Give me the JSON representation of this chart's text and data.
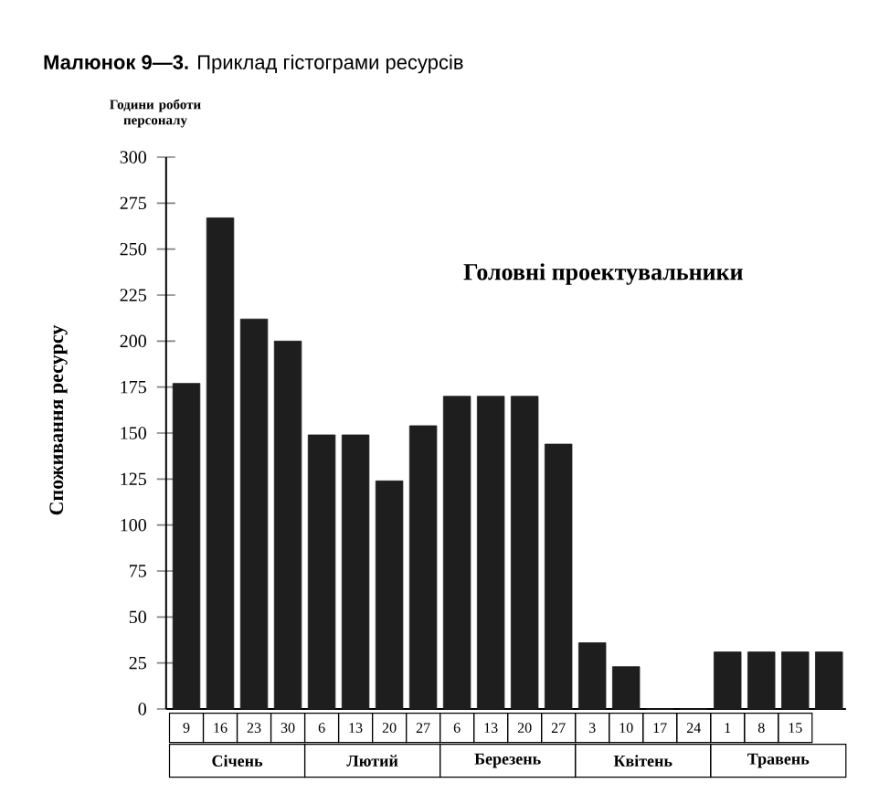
{
  "chart_data": {
    "type": "bar",
    "title": "**Малюнок 9—3.** Приклад гістограми ресурсів",
    "subtitle": "Головні проектувальники",
    "ylabel": "Споживання ресурсу",
    "annotations": [
      "Січень",
      "Лютий",
      "Березень",
      "Квітень",
      "Травень",
      "Години роботи персоналу"
    ],
    "categories": [
      "9",
      "16",
      "23",
      "30",
      "6",
      "13",
      "20",
      "27",
      "6",
      "13",
      "20",
      "27",
      "3",
      "10",
      "17",
      "24",
      "1",
      "8",
      "15",
      null
    ],
    "values": [
      177,
      267,
      212,
      200,
      149,
      149,
      124,
      154,
      170,
      170,
      170,
      144,
      36,
      23,
      0,
      0,
      31,
      31,
      31,
      31
    ],
    "color": "#1e1e1e",
    "ylim": [
      0,
      300
    ],
    "yticks": [
      0,
      25,
      50,
      75,
      100,
      125,
      150,
      175,
      200,
      225,
      250,
      275,
      300
    ]
  }
}
